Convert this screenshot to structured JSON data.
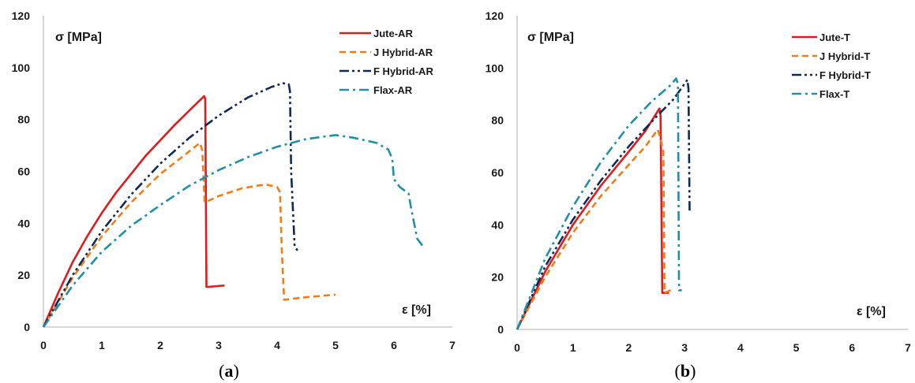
{
  "chart_data": [
    {
      "type": "line",
      "panel_label": "a",
      "ylabel": "σ [MPa]",
      "xlabel": "ε [%]",
      "xlim": [
        0,
        7
      ],
      "ylim": [
        0,
        120
      ],
      "xticks": [
        "0",
        "1",
        "2",
        "3",
        "4",
        "5",
        "6",
        "7"
      ],
      "yticks": [
        "0",
        "20",
        "40",
        "60",
        "80",
        "100",
        "120"
      ],
      "grid": false,
      "legend_position": "top-right",
      "series": [
        {
          "name": "Jute-AR",
          "color": "#e31a1c",
          "dash": "solid",
          "x": [
            0,
            0.25,
            0.5,
            0.75,
            1.0,
            1.25,
            1.5,
            1.75,
            2.0,
            2.25,
            2.5,
            2.75,
            2.77,
            2.79,
            2.82,
            3.1
          ],
          "y": [
            0,
            13,
            25,
            35,
            44,
            52,
            59,
            66,
            72,
            78,
            83.5,
            89,
            88,
            15.5,
            15.5,
            16
          ]
        },
        {
          "name": "J Hybrid-AR",
          "color": "#f07d1a",
          "dash": "dash",
          "x": [
            0,
            0.5,
            1.0,
            1.5,
            2.0,
            2.4,
            2.68,
            2.72,
            2.76,
            3.0,
            3.4,
            3.8,
            4.0,
            4.05,
            4.08,
            4.12,
            4.5,
            5.0
          ],
          "y": [
            0,
            19,
            35,
            48,
            59,
            66,
            71,
            68,
            48,
            50.5,
            53.5,
            55,
            54,
            52,
            30,
            10.5,
            11.5,
            12.5
          ]
        },
        {
          "name": "F Hybrid-AR",
          "color": "#102a56",
          "dash": "dashdotdot",
          "x": [
            0,
            0.5,
            1.0,
            1.5,
            2.0,
            2.5,
            3.0,
            3.5,
            3.9,
            4.1,
            4.2,
            4.22,
            4.24,
            4.3,
            4.35
          ],
          "y": [
            0,
            20,
            37,
            51,
            63,
            73,
            81.5,
            88.5,
            92.5,
            94,
            93.5,
            91,
            60,
            31,
            29.5
          ]
        },
        {
          "name": "Flax-AR",
          "color": "#2090a6",
          "dash": "dashdot",
          "x": [
            0,
            0.5,
            1.0,
            1.5,
            2.0,
            2.5,
            3.0,
            3.5,
            4.0,
            4.5,
            5.0,
            5.3,
            5.5,
            5.7,
            5.9,
            5.97,
            6.0,
            6.1,
            6.25,
            6.3,
            6.4,
            6.5
          ],
          "y": [
            0,
            16,
            29,
            39,
            47,
            54.5,
            60.5,
            65.5,
            69.5,
            72.5,
            74,
            73,
            72,
            71,
            68.5,
            65,
            57,
            54,
            51.5,
            45,
            34,
            31
          ]
        }
      ]
    },
    {
      "type": "line",
      "panel_label": "b",
      "ylabel": "σ [MPa]",
      "xlabel": "ε [%]",
      "xlim": [
        0,
        7
      ],
      "ylim": [
        0,
        120
      ],
      "xticks": [
        "0",
        "1",
        "2",
        "3",
        "4",
        "5",
        "6",
        "7"
      ],
      "yticks": [
        "0",
        "20",
        "40",
        "60",
        "80",
        "100",
        "120"
      ],
      "grid": false,
      "legend_position": "top-right",
      "series": [
        {
          "name": "Jute-T",
          "color": "#e31a1c",
          "dash": "solid",
          "x": [
            0,
            0.5,
            1.0,
            1.5,
            2.0,
            2.3,
            2.55,
            2.57,
            2.6,
            2.72
          ],
          "y": [
            0,
            22,
            40,
            55,
            68,
            76,
            84.5,
            82,
            14,
            14
          ]
        },
        {
          "name": "J Hybrid-T",
          "color": "#f07d1a",
          "dash": "dash",
          "x": [
            0,
            0.5,
            1.0,
            1.5,
            2.0,
            2.3,
            2.52,
            2.58,
            2.62,
            2.64,
            2.75
          ],
          "y": [
            0,
            20,
            37,
            51,
            63,
            70,
            76.5,
            72,
            68,
            14,
            15
          ]
        },
        {
          "name": "F Hybrid-T",
          "color": "#102a56",
          "dash": "dashdotdot",
          "x": [
            0,
            0.5,
            1.0,
            1.5,
            2.0,
            2.5,
            2.8,
            3.05,
            3.07,
            3.09
          ],
          "y": [
            0,
            24,
            42,
            57,
            70,
            81.5,
            88,
            95.5,
            92,
            45
          ]
        },
        {
          "name": "Flax-T",
          "color": "#2090a6",
          "dash": "dashdot",
          "x": [
            0,
            0.5,
            1.0,
            1.5,
            2.0,
            2.4,
            2.75,
            2.85,
            2.88,
            2.9,
            2.95
          ],
          "y": [
            0,
            27,
            47,
            64,
            78,
            87,
            93.5,
            96,
            94,
            15,
            15
          ]
        }
      ]
    }
  ]
}
